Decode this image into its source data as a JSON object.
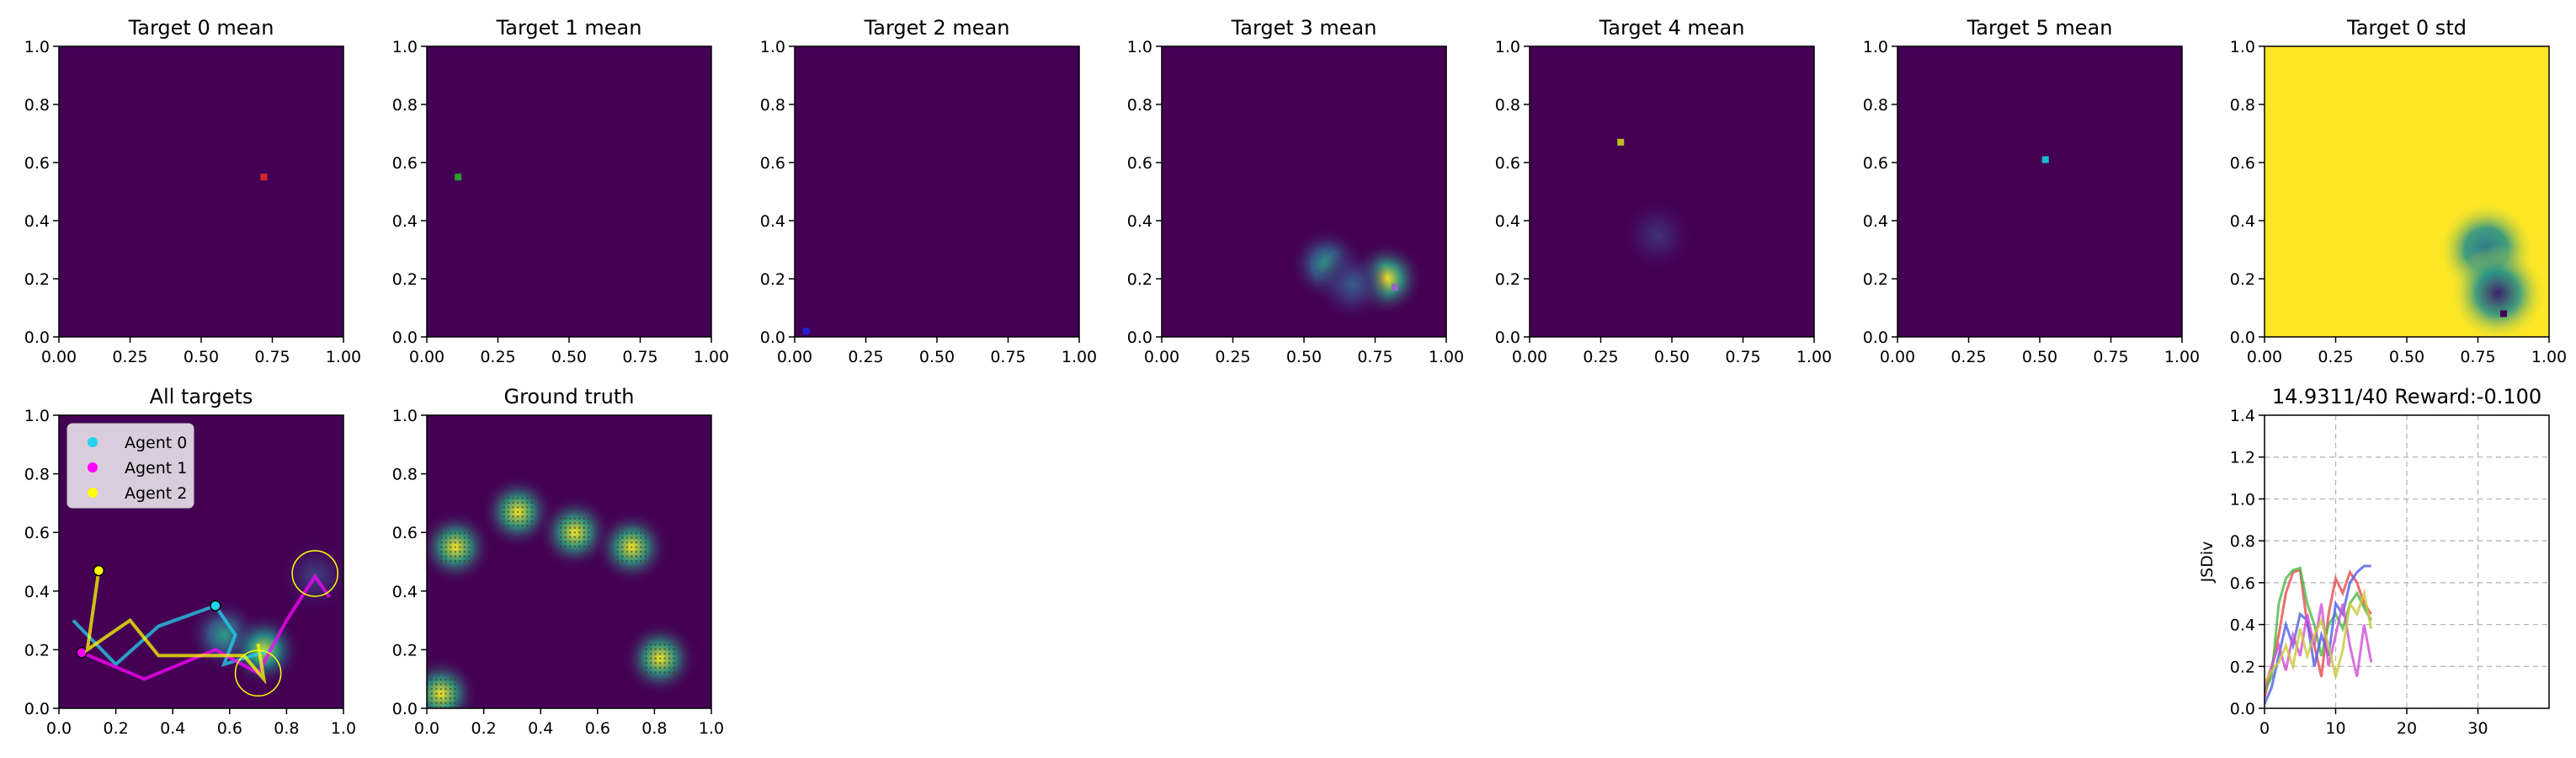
{
  "figure_colors": {
    "viridis_dark": "#440154",
    "viridis_yellow": "#fde725"
  },
  "chart_data": [
    {
      "type": "heatmap",
      "title": "Target 0 mean",
      "xlim": [
        0,
        1
      ],
      "ylim": [
        0,
        1
      ],
      "xticks": [
        "0.00",
        "0.25",
        "0.50",
        "0.75",
        "1.00"
      ],
      "yticks": [
        "0.0",
        "0.2",
        "0.4",
        "0.6",
        "0.8",
        "1.0"
      ],
      "background": "#440154",
      "blobs": [],
      "markers": [
        {
          "x": 0.72,
          "y": 0.55,
          "color": "#d62728"
        }
      ]
    },
    {
      "type": "heatmap",
      "title": "Target 1 mean",
      "xlim": [
        0,
        1
      ],
      "ylim": [
        0,
        1
      ],
      "xticks": [
        "0.00",
        "0.25",
        "0.50",
        "0.75",
        "1.00"
      ],
      "yticks": [
        "0.0",
        "0.2",
        "0.4",
        "0.6",
        "0.8",
        "1.0"
      ],
      "background": "#440154",
      "blobs": [],
      "markers": [
        {
          "x": 0.11,
          "y": 0.55,
          "color": "#2ca02c"
        }
      ]
    },
    {
      "type": "heatmap",
      "title": "Target 2 mean",
      "xlim": [
        0,
        1
      ],
      "ylim": [
        0,
        1
      ],
      "xticks": [
        "0.00",
        "0.25",
        "0.50",
        "0.75",
        "1.00"
      ],
      "yticks": [
        "0.0",
        "0.2",
        "0.4",
        "0.6",
        "0.8",
        "1.0"
      ],
      "background": "#440154",
      "blobs": [],
      "markers": [
        {
          "x": 0.04,
          "y": 0.02,
          "color": "#1f1fd0"
        }
      ]
    },
    {
      "type": "heatmap",
      "title": "Target 3 mean",
      "xlim": [
        0,
        1
      ],
      "ylim": [
        0,
        1
      ],
      "xticks": [
        "0.00",
        "0.25",
        "0.50",
        "0.75",
        "1.00"
      ],
      "yticks": [
        "0.0",
        "0.2",
        "0.4",
        "0.6",
        "0.8",
        "1.0"
      ],
      "background": "#440154",
      "blobs": [
        {
          "x": 0.58,
          "y": 0.25,
          "value": 0.55
        },
        {
          "x": 0.79,
          "y": 0.2,
          "value": 1.0
        },
        {
          "x": 0.67,
          "y": 0.18,
          "value": 0.3
        }
      ],
      "markers": [
        {
          "x": 0.82,
          "y": 0.17,
          "color": "#9467bd"
        }
      ]
    },
    {
      "type": "heatmap",
      "title": "Target 4 mean",
      "xlim": [
        0,
        1
      ],
      "ylim": [
        0,
        1
      ],
      "xticks": [
        "0.00",
        "0.25",
        "0.50",
        "0.75",
        "1.00"
      ],
      "yticks": [
        "0.0",
        "0.2",
        "0.4",
        "0.6",
        "0.8",
        "1.0"
      ],
      "background": "#440154",
      "blobs": [
        {
          "x": 0.45,
          "y": 0.35,
          "value": 0.15
        }
      ],
      "markers": [
        {
          "x": 0.32,
          "y": 0.67,
          "color": "#bcbd22"
        }
      ]
    },
    {
      "type": "heatmap",
      "title": "Target 5 mean",
      "xlim": [
        0,
        1
      ],
      "ylim": [
        0,
        1
      ],
      "xticks": [
        "0.00",
        "0.25",
        "0.50",
        "0.75",
        "1.00"
      ],
      "yticks": [
        "0.0",
        "0.2",
        "0.4",
        "0.6",
        "0.8",
        "1.0"
      ],
      "background": "#440154",
      "blobs": [],
      "markers": [
        {
          "x": 0.52,
          "y": 0.61,
          "color": "#17becf"
        }
      ]
    },
    {
      "type": "heatmap",
      "title": "Target 0 std",
      "xlim": [
        0,
        1
      ],
      "ylim": [
        0,
        1
      ],
      "xticks": [
        "0.00",
        "0.25",
        "0.50",
        "0.75",
        "1.00"
      ],
      "yticks": [
        "0.0",
        "0.2",
        "0.4",
        "0.6",
        "0.8",
        "1.0"
      ],
      "background": "#fde725",
      "blobs": [
        {
          "x": 0.78,
          "y": 0.3,
          "value": 0.6
        },
        {
          "x": 0.82,
          "y": 0.15,
          "value": 0.9
        }
      ],
      "markers": [
        {
          "x": 0.84,
          "y": 0.08,
          "color": "#440154"
        }
      ]
    },
    {
      "type": "heatmap",
      "title": "All targets",
      "xlim": [
        0,
        1
      ],
      "ylim": [
        0,
        1
      ],
      "xticks": [
        "0.0",
        "0.2",
        "0.4",
        "0.6",
        "0.8",
        "1.0"
      ],
      "yticks": [
        "0.0",
        "0.2",
        "0.4",
        "0.6",
        "0.8",
        "1.0"
      ],
      "background": "#440154",
      "blobs": [
        {
          "x": 0.58,
          "y": 0.25,
          "value": 0.55
        },
        {
          "x": 0.72,
          "y": 0.2,
          "value": 0.9
        },
        {
          "x": 0.9,
          "y": 0.45,
          "value": 0.2
        }
      ],
      "legend": {
        "position": "upper-left",
        "entries": [
          {
            "label": "Agent 0",
            "color": "#22d3ee"
          },
          {
            "label": "Agent 1",
            "color": "#ff00ff"
          },
          {
            "label": "Agent 2",
            "color": "#ffff00"
          }
        ]
      },
      "agents": [
        {
          "x": 0.55,
          "y": 0.35,
          "color": "#22d3ee",
          "path": [
            [
              0.05,
              0.3
            ],
            [
              0.2,
              0.15
            ],
            [
              0.35,
              0.28
            ],
            [
              0.55,
              0.35
            ],
            [
              0.62,
              0.25
            ],
            [
              0.58,
              0.15
            ],
            [
              0.75,
              0.2
            ]
          ]
        },
        {
          "x": 0.08,
          "y": 0.19,
          "color": "#ff00ff",
          "path": [
            [
              0.08,
              0.19
            ],
            [
              0.3,
              0.1
            ],
            [
              0.55,
              0.2
            ],
            [
              0.7,
              0.12
            ],
            [
              0.8,
              0.3
            ],
            [
              0.9,
              0.45
            ],
            [
              0.95,
              0.38
            ]
          ]
        },
        {
          "x": 0.14,
          "y": 0.47,
          "color": "#ffff00",
          "path": [
            [
              0.14,
              0.47
            ],
            [
              0.1,
              0.2
            ],
            [
              0.25,
              0.3
            ],
            [
              0.35,
              0.18
            ],
            [
              0.65,
              0.18
            ],
            [
              0.72,
              0.1
            ],
            [
              0.7,
              0.22
            ]
          ]
        }
      ],
      "circles": [
        {
          "x": 0.9,
          "y": 0.46,
          "r": 0.08
        },
        {
          "x": 0.7,
          "y": 0.12,
          "r": 0.08
        }
      ]
    },
    {
      "type": "heatmap",
      "title": "Ground truth",
      "xlim": [
        0,
        1
      ],
      "ylim": [
        0,
        1
      ],
      "xticks": [
        "0.0",
        "0.2",
        "0.4",
        "0.6",
        "0.8",
        "1.0"
      ],
      "yticks": [
        "0.0",
        "0.2",
        "0.4",
        "0.6",
        "0.8",
        "1.0"
      ],
      "background": "#440154",
      "blobs": [
        {
          "x": 0.1,
          "y": 0.55,
          "value": 1.0
        },
        {
          "x": 0.32,
          "y": 0.67,
          "value": 1.0
        },
        {
          "x": 0.52,
          "y": 0.6,
          "value": 1.0
        },
        {
          "x": 0.72,
          "y": 0.55,
          "value": 1.0
        },
        {
          "x": 0.82,
          "y": 0.17,
          "value": 1.0
        },
        {
          "x": 0.05,
          "y": 0.05,
          "value": 1.0
        }
      ]
    },
    {
      "type": "line",
      "title": "14.9311/40 Reward:-0.100",
      "xlabel": "",
      "ylabel": "JSDiv",
      "xlim": [
        0,
        40
      ],
      "ylim": [
        0,
        1.4
      ],
      "grid": true,
      "xticks": [
        "0",
        "10",
        "20",
        "30"
      ],
      "yticks": [
        "0.0",
        "0.2",
        "0.4",
        "0.6",
        "0.8",
        "1.0",
        "1.2",
        "1.4"
      ],
      "series": [
        {
          "color": "#e8494e",
          "x": [
            0,
            1,
            2,
            3,
            4,
            5,
            6,
            7,
            8,
            9,
            10,
            11,
            12,
            13,
            14,
            15
          ],
          "y": [
            0.05,
            0.2,
            0.35,
            0.55,
            0.65,
            0.66,
            0.4,
            0.3,
            0.15,
            0.45,
            0.62,
            0.55,
            0.65,
            0.6,
            0.5,
            0.45
          ]
        },
        {
          "color": "#4fb848",
          "x": [
            0,
            1,
            2,
            3,
            4,
            5,
            6,
            7,
            8,
            9,
            10,
            11,
            12,
            13,
            14,
            15
          ],
          "y": [
            0.08,
            0.15,
            0.5,
            0.62,
            0.66,
            0.67,
            0.5,
            0.4,
            0.25,
            0.4,
            0.45,
            0.38,
            0.5,
            0.55,
            0.48,
            0.42
          ]
        },
        {
          "color": "#4f5ee8",
          "x": [
            0,
            1,
            2,
            3,
            4,
            5,
            6,
            7,
            8,
            9,
            10,
            11,
            12,
            13,
            14,
            15
          ],
          "y": [
            0.02,
            0.1,
            0.25,
            0.4,
            0.3,
            0.45,
            0.42,
            0.2,
            0.35,
            0.25,
            0.5,
            0.45,
            0.6,
            0.65,
            0.68,
            0.68
          ]
        },
        {
          "color": "#d04fd4",
          "x": [
            0,
            1,
            2,
            3,
            4,
            5,
            6,
            7,
            8,
            9,
            10,
            11,
            12,
            13,
            14,
            15
          ],
          "y": [
            0.1,
            0.2,
            0.3,
            0.18,
            0.35,
            0.25,
            0.45,
            0.3,
            0.5,
            0.2,
            0.35,
            0.5,
            0.3,
            0.15,
            0.4,
            0.22
          ]
        },
        {
          "color": "#c9c93a",
          "x": [
            0,
            1,
            2,
            3,
            4,
            5,
            6,
            7,
            8,
            9,
            10,
            11,
            12,
            13,
            14,
            15
          ],
          "y": [
            0.12,
            0.18,
            0.22,
            0.3,
            0.2,
            0.38,
            0.25,
            0.35,
            0.42,
            0.3,
            0.15,
            0.28,
            0.5,
            0.45,
            0.55,
            0.38
          ]
        }
      ]
    }
  ]
}
